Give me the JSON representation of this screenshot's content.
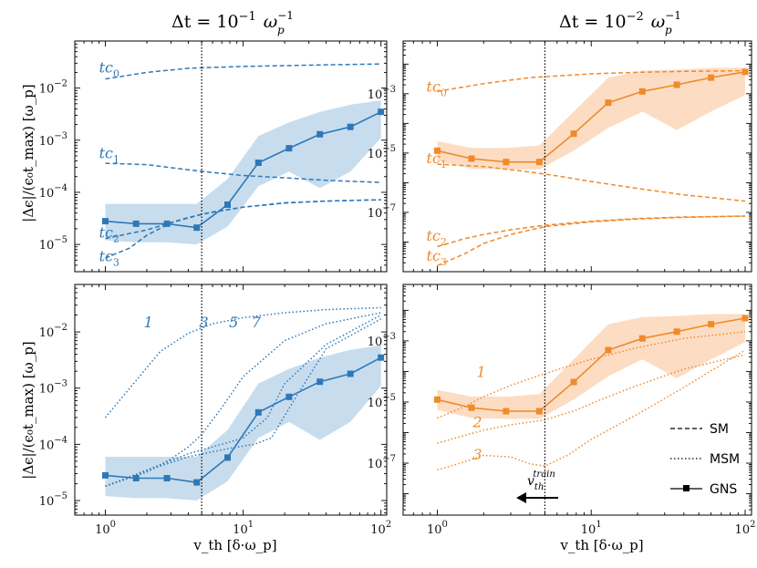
{
  "colors": {
    "left": "#2f78b7",
    "right": "#f08a2a",
    "left_fill": "#b9d4ea",
    "right_fill": "#fbd5b4",
    "axes": "#000000"
  },
  "titles": {
    "left": {
      "prefix": "Δt = 10",
      "exp": "−1",
      "unit": "ω",
      "unit_sub": "p",
      "unit_sup": "−1"
    },
    "right": {
      "prefix": "Δt = 10",
      "exp": "−2",
      "unit": "ω",
      "unit_sub": "p",
      "unit_sup": "−1"
    }
  },
  "ylabel": "|Δϵ|/(ϵ₀t_max) [ω_p]",
  "xlabel": "v_th [δ·ω_p]",
  "legend": {
    "sm": "SM",
    "msm": "MSM",
    "gns": "GNS"
  },
  "annotation": {
    "text": "v",
    "sub": "th",
    "sup": "train"
  },
  "chart_data": [
    {
      "id": "top-left",
      "type": "line",
      "xscale": "log",
      "yscale": "log",
      "xlim": [
        0.6,
        110
      ],
      "ylim": [
        3e-06,
        0.08
      ],
      "xticks": [
        1,
        10,
        100
      ],
      "yticks": [
        1e-05,
        0.0001,
        0.001,
        0.01
      ],
      "vline": 5,
      "gns": {
        "x": [
          1,
          1.67,
          2.8,
          4.6,
          7.7,
          12.9,
          21.5,
          36,
          60,
          100
        ],
        "y": [
          2.8e-05,
          2.5e-05,
          2.5e-05,
          2.1e-05,
          5.8e-05,
          0.00037,
          0.0007,
          0.0013,
          0.0018,
          0.0035
        ],
        "band_low": [
          1.2e-05,
          1.1e-05,
          1.1e-05,
          1e-05,
          2.2e-05,
          0.00013,
          0.00025,
          0.00012,
          0.00025,
          0.0011
        ],
        "band_high": [
          6e-05,
          6e-05,
          6e-05,
          6e-05,
          0.00018,
          0.0012,
          0.0022,
          0.0035,
          0.0048,
          0.0058
        ]
      },
      "sm": [
        {
          "label": "0",
          "x": [
            1,
            2,
            4,
            6,
            10,
            20,
            40,
            100
          ],
          "y": [
            0.015,
            0.02,
            0.024,
            0.025,
            0.026,
            0.027,
            0.028,
            0.029
          ]
        },
        {
          "label": "1",
          "x": [
            1,
            2,
            4,
            6,
            10,
            20,
            40,
            100
          ],
          "y": [
            0.00036,
            0.00034,
            0.00027,
            0.00024,
            0.00021,
            0.00019,
            0.00017,
            0.000155
          ]
        },
        {
          "label": "2",
          "x": [
            1,
            2,
            4,
            6,
            10,
            20,
            40,
            100
          ],
          "y": [
            1.3e-05,
            1.9e-05,
            3.3e-05,
            4.2e-05,
            5.2e-05,
            6.3e-05,
            6.8e-05,
            7.2e-05
          ]
        },
        {
          "label": "3",
          "x": [
            1,
            1.5,
            2,
            3,
            5,
            10,
            20,
            40,
            100
          ],
          "y": [
            5.5e-06,
            8.5e-06,
            1.5e-05,
            2.6e-05,
            3.8e-05,
            5.2e-05,
            6.2e-05,
            6.8e-05,
            7.2e-05
          ]
        }
      ],
      "sm_labels": [
        "tc",
        "tc",
        "tc",
        "tc"
      ],
      "msm": [],
      "msm_labels": []
    },
    {
      "id": "top-right",
      "type": "line",
      "xscale": "log",
      "yscale": "log",
      "xlim": [
        0.6,
        110
      ],
      "ylim": [
        1e-09,
        0.06
      ],
      "xticks": [
        1,
        10,
        100
      ],
      "yticks": [
        1e-07,
        1e-05,
        0.001
      ],
      "vline": 5,
      "gns": {
        "x": [
          1,
          1.67,
          2.8,
          4.6,
          7.7,
          12.9,
          21.5,
          36,
          60,
          100
        ],
        "y": [
          1.2e-05,
          6.5e-06,
          5e-06,
          5e-06,
          4.5e-05,
          0.0005,
          0.0012,
          0.002,
          0.0035,
          0.0055
        ],
        "band_low": [
          5.5e-06,
          3e-06,
          2.8e-06,
          2.8e-06,
          1.2e-05,
          7e-05,
          0.00025,
          6e-05,
          0.00025,
          0.0009
        ],
        "band_high": [
          2.5e-05,
          1.5e-05,
          1.5e-05,
          1.8e-05,
          0.00025,
          0.0035,
          0.006,
          0.0065,
          0.0075,
          0.0075
        ]
      },
      "sm": [
        {
          "label": "0",
          "x": [
            1,
            2,
            4,
            6,
            10,
            20,
            40,
            100
          ],
          "y": [
            0.0012,
            0.0022,
            0.0035,
            0.004,
            0.0047,
            0.0053,
            0.0057,
            0.006
          ]
        },
        {
          "label": "1",
          "x": [
            1,
            2,
            4,
            6,
            10,
            20,
            40,
            100
          ],
          "y": [
            4.2e-06,
            3.5e-06,
            2.3e-06,
            1.7e-06,
            1.1e-06,
            6.4e-07,
            3.9e-07,
            2.4e-07
          ]
        },
        {
          "label": "2",
          "x": [
            1,
            1.5,
            2,
            3,
            5,
            10,
            20,
            40,
            100
          ],
          "y": [
            7e-09,
            1.3e-08,
            1.8e-08,
            2.6e-08,
            3.7e-08,
            5e-08,
            6.2e-08,
            7e-08,
            7.5e-08
          ]
        },
        {
          "label": "3",
          "x": [
            1,
            1.5,
            2,
            3,
            5,
            10,
            20,
            40,
            100
          ],
          "y": [
            1.6e-09,
            4e-09,
            9e-09,
            1.8e-08,
            3.3e-08,
            4.8e-08,
            6e-08,
            6.8e-08,
            7.5e-08
          ]
        }
      ],
      "sm_labels": [
        "tc",
        "tc",
        "tc",
        "tc"
      ],
      "msm": [],
      "msm_labels": []
    },
    {
      "id": "bottom-left",
      "type": "line",
      "xscale": "log",
      "yscale": "log",
      "xlim": [
        0.6,
        110
      ],
      "ylim": [
        5.5e-06,
        0.07
      ],
      "xticks": [
        1,
        10,
        100
      ],
      "yticks": [
        1e-05,
        0.0001,
        0.001,
        0.01
      ],
      "vline": 5,
      "gns": {
        "x": [
          1,
          1.67,
          2.8,
          4.6,
          7.7,
          12.9,
          21.5,
          36,
          60,
          100
        ],
        "y": [
          2.8e-05,
          2.5e-05,
          2.5e-05,
          2.1e-05,
          5.8e-05,
          0.00037,
          0.0007,
          0.0013,
          0.0018,
          0.0035
        ],
        "band_low": [
          1.2e-05,
          1.1e-05,
          1.1e-05,
          1e-05,
          2.2e-05,
          0.00013,
          0.00025,
          0.00012,
          0.00025,
          0.0011
        ],
        "band_high": [
          6e-05,
          6e-05,
          6e-05,
          6e-05,
          0.00018,
          0.0012,
          0.0022,
          0.0035,
          0.0048,
          0.0058
        ]
      },
      "sm": [],
      "sm_labels": [],
      "msm": [
        {
          "label": "1",
          "x": [
            1,
            1.6,
            2.5,
            4,
            6,
            10,
            20,
            40,
            100
          ],
          "y": [
            0.0003,
            0.0012,
            0.0045,
            0.0095,
            0.014,
            0.018,
            0.022,
            0.025,
            0.027
          ]
        },
        {
          "label": "3",
          "x": [
            1,
            2,
            3,
            4,
            5,
            7,
            10,
            20,
            40,
            100
          ],
          "y": [
            1.8e-05,
            3.2e-05,
            5.5e-05,
            9e-05,
            0.00015,
            0.00045,
            0.0016,
            0.007,
            0.014,
            0.022
          ]
        },
        {
          "label": "5",
          "x": [
            1,
            2,
            4,
            6,
            8,
            10,
            15,
            20,
            40,
            100
          ],
          "y": [
            1.8e-05,
            3.5e-05,
            6.8e-05,
            9e-05,
            0.00011,
            0.00013,
            0.0003,
            0.0012,
            0.006,
            0.02
          ]
        },
        {
          "label": "7",
          "x": [
            1,
            2,
            4,
            8,
            12,
            16,
            25,
            40,
            100
          ],
          "y": [
            1.8e-05,
            3.4e-05,
            6e-05,
            8.5e-05,
            0.0001,
            0.00013,
            0.0008,
            0.005,
            0.017
          ]
        }
      ],
      "msm_labels": [
        "1",
        "3",
        "5",
        "7"
      ]
    },
    {
      "id": "bottom-right",
      "type": "line",
      "xscale": "log",
      "yscale": "log",
      "xlim": [
        0.6,
        110
      ],
      "ylim": [
        2e-09,
        0.07
      ],
      "xticks": [
        1,
        10,
        100
      ],
      "yticks": [
        1e-07,
        1e-05,
        0.001
      ],
      "vline": 5,
      "gns": {
        "x": [
          1,
          1.67,
          2.8,
          4.6,
          7.7,
          12.9,
          21.5,
          36,
          60,
          100
        ],
        "y": [
          1.2e-05,
          6.5e-06,
          5e-06,
          5e-06,
          4.5e-05,
          0.0005,
          0.0012,
          0.002,
          0.0035,
          0.0055
        ],
        "band_low": [
          5.5e-06,
          3e-06,
          2.8e-06,
          2.8e-06,
          1.2e-05,
          7e-05,
          0.00025,
          6e-05,
          0.00025,
          0.0009
        ],
        "band_high": [
          2.5e-05,
          1.5e-05,
          1.5e-05,
          1.8e-05,
          0.00025,
          0.0035,
          0.006,
          0.0065,
          0.0075,
          0.0075
        ]
      },
      "sm": [],
      "sm_labels": [],
      "msm": [
        {
          "label": "1",
          "x": [
            1,
            1.5,
            2,
            3,
            5,
            10,
            20,
            40,
            100
          ],
          "y": [
            3e-06,
            7e-06,
            1.5e-05,
            3.5e-05,
            8.5e-05,
            0.00025,
            0.0006,
            0.0012,
            0.002
          ]
        },
        {
          "label": "2",
          "x": [
            1,
            1.5,
            2,
            3,
            5,
            8,
            12,
            20,
            40,
            100
          ],
          "y": [
            4.5e-07,
            8e-07,
            1.2e-06,
            1.8e-06,
            2.6e-06,
            5.5e-06,
            1.3e-05,
            3.5e-05,
            0.00012,
            0.00035
          ]
        },
        {
          "label": "3",
          "x": [
            1,
            1.5,
            2,
            3,
            4,
            5,
            7,
            10,
            20,
            40,
            100
          ],
          "y": [
            6e-08,
            1.1e-07,
            1.8e-07,
            1.6e-07,
            9.5e-08,
            8e-08,
            1.8e-07,
            6e-07,
            4e-06,
            3e-05,
            0.0005
          ]
        }
      ],
      "msm_labels": [
        "1",
        "2",
        "3"
      ]
    }
  ]
}
